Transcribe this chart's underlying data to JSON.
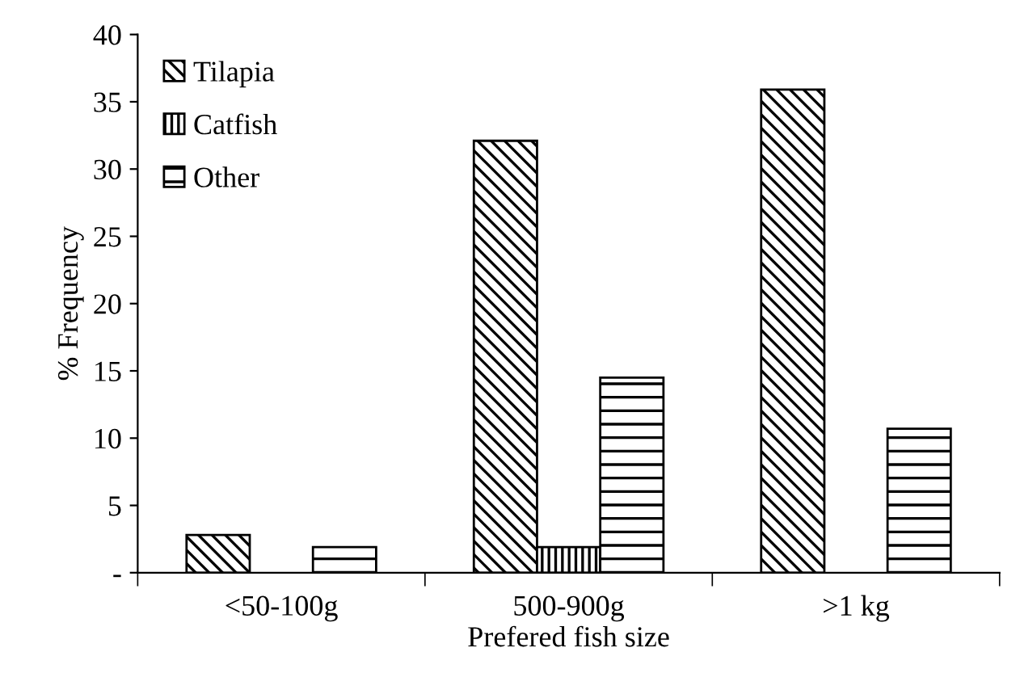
{
  "chart_data": {
    "type": "bar",
    "xlabel": "Prefered fish size",
    "ylabel": "% Frequency",
    "categories": [
      "<50-100g",
      "500-900g",
      ">1 kg"
    ],
    "series": [
      {
        "name": "Tilapia",
        "color": "#000000",
        "values": [
          2.8,
          32.1,
          35.9
        ]
      },
      {
        "name": "Catfish",
        "color": "#000000",
        "values": [
          null,
          1.9,
          null
        ]
      },
      {
        "name": "Other",
        "color": "#000000",
        "values": [
          1.9,
          14.5,
          10.7
        ]
      }
    ],
    "ylim": [
      0,
      40
    ],
    "yticks": [
      {
        "value": 0,
        "label": "-"
      },
      5,
      10,
      15,
      20,
      25,
      30,
      35,
      40
    ],
    "grid": false,
    "legend": "top left"
  }
}
